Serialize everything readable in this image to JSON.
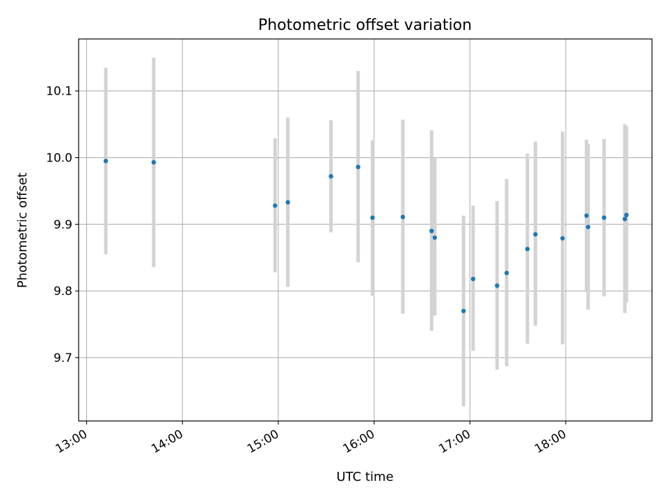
{
  "chart_data": {
    "type": "scatter",
    "title": "Photometric offset variation",
    "xlabel": "UTC time",
    "ylabel": "Photometric offset",
    "x_axis_kind": "time",
    "x_ticks": [
      "13:00",
      "14:00",
      "15:00",
      "16:00",
      "17:00",
      "18:00"
    ],
    "y_ticks": [
      "9.7",
      "9.8",
      "9.9",
      "10.0",
      "10.1"
    ],
    "xlim": [
      "12:55",
      "18:54"
    ],
    "ylim": [
      9.605,
      10.178
    ],
    "grid": true,
    "legend": "none",
    "colors": {
      "points": "#1f77b4",
      "errorbars": "#d3d3d3",
      "grid": "#b0b0b0"
    },
    "points": [
      {
        "x": "13:12",
        "y": 9.995,
        "err_low": 9.855,
        "err_high": 10.135
      },
      {
        "x": "13:42",
        "y": 9.993,
        "err_low": 9.836,
        "err_high": 10.15
      },
      {
        "x": "14:58",
        "y": 9.928,
        "err_low": 9.828,
        "err_high": 10.029
      },
      {
        "x": "15:06",
        "y": 9.933,
        "err_low": 9.806,
        "err_high": 10.06
      },
      {
        "x": "15:33",
        "y": 9.972,
        "err_low": 9.888,
        "err_high": 10.056
      },
      {
        "x": "15:50",
        "y": 9.986,
        "err_low": 9.843,
        "err_high": 10.13
      },
      {
        "x": "15:59",
        "y": 9.91,
        "err_low": 9.793,
        "err_high": 10.026
      },
      {
        "x": "16:18",
        "y": 9.911,
        "err_low": 9.766,
        "err_high": 10.057
      },
      {
        "x": "16:36",
        "y": 9.89,
        "err_low": 9.74,
        "err_high": 10.041
      },
      {
        "x": "16:38",
        "y": 9.88,
        "err_low": 9.763,
        "err_high": 9.999
      },
      {
        "x": "16:56",
        "y": 9.77,
        "err_low": 9.627,
        "err_high": 9.913
      },
      {
        "x": "17:02",
        "y": 9.818,
        "err_low": 9.71,
        "err_high": 9.928
      },
      {
        "x": "17:17",
        "y": 9.808,
        "err_low": 9.682,
        "err_high": 9.935
      },
      {
        "x": "17:23",
        "y": 9.827,
        "err_low": 9.687,
        "err_high": 9.968
      },
      {
        "x": "17:36",
        "y": 9.863,
        "err_low": 9.721,
        "err_high": 10.006
      },
      {
        "x": "17:41",
        "y": 9.885,
        "err_low": 9.748,
        "err_high": 10.024
      },
      {
        "x": "17:58",
        "y": 9.879,
        "err_low": 9.72,
        "err_high": 10.039
      },
      {
        "x": "18:13",
        "y": 9.913,
        "err_low": 9.8,
        "err_high": 10.027
      },
      {
        "x": "18:14",
        "y": 9.896,
        "err_low": 9.772,
        "err_high": 10.02
      },
      {
        "x": "18:24",
        "y": 9.91,
        "err_low": 9.792,
        "err_high": 10.028
      },
      {
        "x": "18:37",
        "y": 9.908,
        "err_low": 9.767,
        "err_high": 10.05
      },
      {
        "x": "18:38",
        "y": 9.914,
        "err_low": 9.783,
        "err_high": 10.047
      }
    ]
  }
}
